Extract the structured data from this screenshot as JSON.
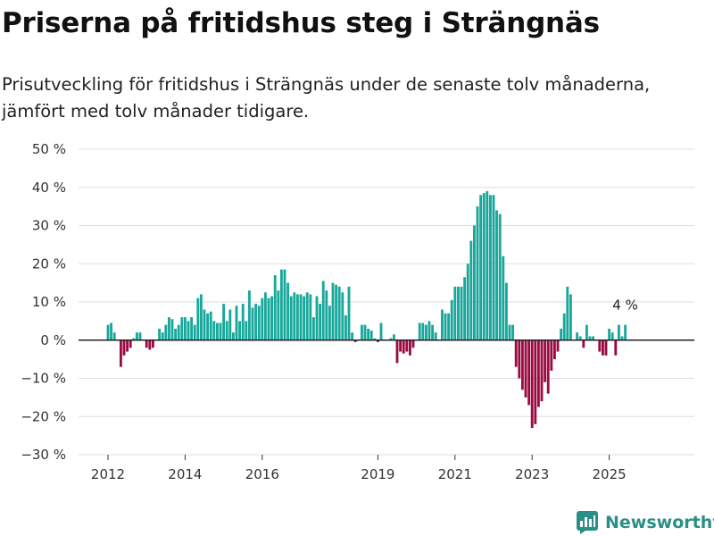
{
  "title": "Priserna på fritidshus steg i Strängnäs",
  "subtitle": "Prisutveckling för fritidshus i Strängnäs under de senaste tolv månaderna, jämfört med tolv månader tidigare.",
  "brand": {
    "name": "Newsworthy",
    "icon": "bar-chart-logo-icon"
  },
  "colors": {
    "positive": "#18a79b",
    "negative": "#9b0a40",
    "zero_line": "#222222",
    "grid": "#dddddd",
    "brand": "#2a8f86"
  },
  "chart_data": {
    "type": "bar",
    "title": "Priserna på fritidshus steg i Strängnäs",
    "xlabel": "",
    "ylabel": "",
    "unit": "%",
    "ylim": [
      -30,
      50
    ],
    "y_ticks": [
      {
        "value": 50,
        "label": "50 %"
      },
      {
        "value": 40,
        "label": "40 %"
      },
      {
        "value": 30,
        "label": "30 %"
      },
      {
        "value": 20,
        "label": "20 %"
      },
      {
        "value": 10,
        "label": "10 %"
      },
      {
        "value": 0,
        "label": "0 %"
      },
      {
        "value": -10,
        "label": "−10 %"
      },
      {
        "value": -20,
        "label": "−20 %"
      },
      {
        "value": -30,
        "label": "−30 %"
      }
    ],
    "x_ticks": [
      {
        "year": 2012,
        "label": "2012"
      },
      {
        "year": 2014,
        "label": "2014"
      },
      {
        "year": 2016,
        "label": "2016"
      },
      {
        "year": 2019,
        "label": "2019"
      },
      {
        "year": 2021,
        "label": "2021"
      },
      {
        "year": 2023,
        "label": "2023"
      },
      {
        "year": 2025,
        "label": "2025"
      }
    ],
    "start": {
      "year": 2012,
      "month": 1
    },
    "grid": true,
    "legend": "none",
    "annotation": {
      "label": "4 %",
      "value": 4
    },
    "values": [
      4,
      4.5,
      2,
      0,
      -7,
      -4,
      -3,
      -2,
      0.5,
      2,
      2,
      0,
      -2,
      -2.5,
      -2,
      0,
      3,
      2,
      4,
      6,
      5.5,
      3,
      4,
      6,
      6,
      5,
      6,
      4,
      11,
      12,
      8,
      7,
      7.5,
      5,
      4.5,
      4.5,
      9.5,
      5,
      8,
      2,
      9,
      5,
      9.5,
      5,
      13,
      8.5,
      9.5,
      9,
      11,
      12.5,
      11,
      11.5,
      17,
      13,
      18.5,
      18.5,
      15,
      11.5,
      12.5,
      12,
      12,
      11.5,
      12.5,
      12,
      6,
      11.5,
      9.5,
      15.5,
      13,
      9,
      15,
      14.5,
      14,
      12.5,
      6.5,
      14,
      2,
      -0.5,
      0,
      4,
      4,
      3,
      2.5,
      0.5,
      -0.5,
      4.5,
      0,
      0,
      0.5,
      1.5,
      -6,
      -3,
      -3.5,
      -3,
      -4,
      -2,
      0,
      4.5,
      4.5,
      4,
      5,
      4,
      2,
      0,
      8,
      7,
      7,
      10.5,
      14,
      14,
      14,
      16.5,
      20,
      26,
      30,
      35,
      38,
      38.5,
      39,
      38,
      38,
      34,
      33,
      22,
      15,
      4,
      4,
      -7,
      -10,
      -13,
      -15,
      -17,
      -23,
      -22,
      -17.5,
      -16,
      -11,
      -14,
      -8,
      -5,
      -3,
      3,
      7,
      14,
      12,
      0,
      2,
      1,
      -2,
      4,
      1,
      1,
      0,
      -3,
      -4,
      -4,
      3,
      2,
      -4,
      4,
      1,
      4
    ]
  }
}
